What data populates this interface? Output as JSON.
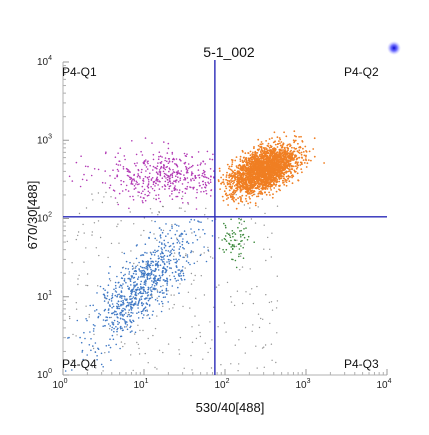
{
  "chart_data": {
    "type": "scatter",
    "title": "5-1_002",
    "xlabel": "530/40[488]",
    "ylabel": "670/30[488]",
    "x_scale": "log",
    "y_scale": "log",
    "xlim": [
      1,
      10000
    ],
    "ylim": [
      1,
      10000
    ],
    "grid": false,
    "x_ticks": [
      {
        "value": 1,
        "base": "10",
        "exp": "0"
      },
      {
        "value": 10,
        "base": "10",
        "exp": "1"
      },
      {
        "value": 100,
        "base": "10",
        "exp": "2"
      },
      {
        "value": 1000,
        "base": "10",
        "exp": "3"
      },
      {
        "value": 10000,
        "base": "10",
        "exp": "4"
      }
    ],
    "y_ticks": [
      {
        "value": 1,
        "base": "10",
        "exp": "0"
      },
      {
        "value": 10,
        "base": "10",
        "exp": "1"
      },
      {
        "value": 100,
        "base": "10",
        "exp": "2"
      },
      {
        "value": 1000,
        "base": "10",
        "exp": "3"
      },
      {
        "value": 10000,
        "base": "10",
        "exp": "4"
      }
    ],
    "quadrant_gate": {
      "x": 75,
      "y": 105,
      "color": "#2a2ab8"
    },
    "quadrant_labels": {
      "q1": "P4-Q1",
      "q2": "P4-Q2",
      "q3": "P4-Q3",
      "q4": "P4-Q4"
    },
    "populations": [
      {
        "quadrant": "Q1",
        "color": "#b23ab5",
        "count": 450,
        "center": [
          20,
          350
        ],
        "spread": [
          0.42,
          0.16
        ]
      },
      {
        "quadrant": "Q2",
        "color": "#f07f23",
        "count": 2600,
        "center": [
          300,
          420
        ],
        "spread": [
          0.2,
          0.13
        ]
      },
      {
        "quadrant": "Q3",
        "color": "#3c8a3c",
        "count": 70,
        "center": [
          140,
          55
        ],
        "spread": [
          0.1,
          0.14
        ]
      },
      {
        "quadrant": "Q4",
        "color": "#3f78c4",
        "count": 800,
        "center": [
          10,
          15
        ],
        "spread": [
          0.33,
          0.3
        ]
      }
    ],
    "gray_points": {
      "color": "#666666",
      "count": 280
    }
  }
}
